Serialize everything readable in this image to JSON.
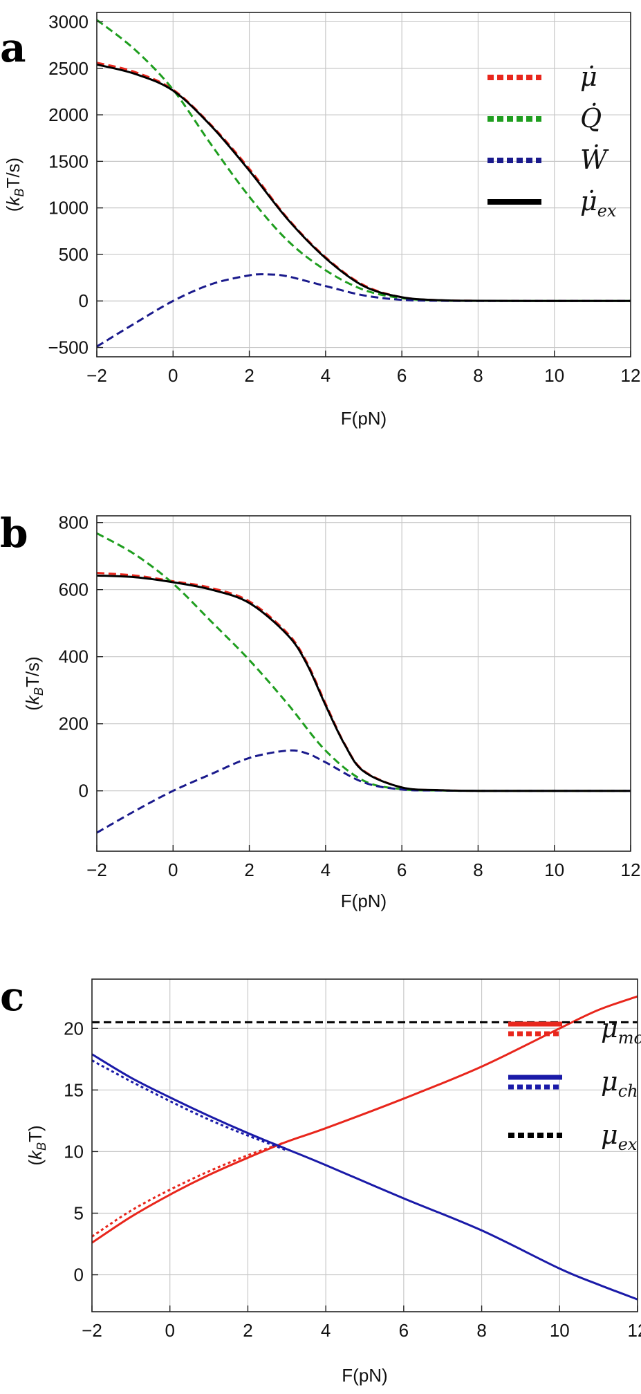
{
  "chart_data": [
    {
      "type": "line",
      "panel_label": "a",
      "xlabel": "F(pN)",
      "ylabel": {
        "prefix": "(",
        "k": "k",
        "sub": "B",
        "suffix": "T/s)"
      },
      "xlim": [
        -2,
        12
      ],
      "ylim": [
        -600,
        3100
      ],
      "xticks": [
        -2,
        0,
        2,
        4,
        6,
        8,
        10,
        12
      ],
      "yticks": [
        -500,
        0,
        500,
        1000,
        1500,
        2000,
        2500,
        3000
      ],
      "grid": true,
      "legend_position": "top-right",
      "series": [
        {
          "name": "μ̇",
          "label": {
            "main": "μ̇",
            "sub": ""
          },
          "color": "#e8261c",
          "style": "dashed",
          "x": [
            -2,
            -1,
            0,
            1,
            2,
            3,
            4,
            5,
            6,
            7,
            8,
            10,
            12
          ],
          "y": [
            2560,
            2460,
            2270,
            1890,
            1420,
            890,
            470,
            170,
            40,
            8,
            2,
            0,
            0
          ]
        },
        {
          "name": "Q̇",
          "label": {
            "main": "Q̇",
            "sub": ""
          },
          "color": "#1f9e1f",
          "style": "dashed",
          "x": [
            -2,
            -1,
            0,
            1,
            2,
            3,
            4,
            5,
            6,
            7,
            8,
            10,
            12
          ],
          "y": [
            3020,
            2700,
            2270,
            1680,
            1120,
            650,
            330,
            120,
            30,
            5,
            1,
            0,
            0
          ]
        },
        {
          "name": "Ẇ",
          "label": {
            "main": "Ẇ",
            "sub": ""
          },
          "color": "#1a1a8c",
          "style": "dashed",
          "x": [
            -2,
            -1,
            0,
            1,
            2,
            2.5,
            3,
            4,
            5,
            6,
            7,
            8,
            10,
            12
          ],
          "y": [
            -490,
            -240,
            0,
            180,
            275,
            285,
            265,
            160,
            60,
            12,
            2,
            0,
            0,
            0
          ]
        },
        {
          "name": "μ̇ex",
          "label": {
            "main": "μ̇",
            "sub": "ex"
          },
          "color": "#000000",
          "style": "solid",
          "x": [
            -2,
            -1,
            0,
            1,
            2,
            3,
            4,
            5,
            6,
            7,
            8,
            10,
            12
          ],
          "y": [
            2540,
            2440,
            2260,
            1880,
            1400,
            880,
            460,
            160,
            40,
            8,
            2,
            0,
            0
          ]
        }
      ]
    },
    {
      "type": "line",
      "panel_label": "b",
      "xlabel": "F(pN)",
      "ylabel": {
        "prefix": "(",
        "k": "k",
        "sub": "B",
        "suffix": "T/s)"
      },
      "xlim": [
        -2,
        12
      ],
      "ylim": [
        -180,
        820
      ],
      "xticks": [
        -2,
        0,
        2,
        4,
        6,
        8,
        10,
        12
      ],
      "yticks": [
        0,
        200,
        400,
        600,
        800
      ],
      "grid": true,
      "legend_position": "none",
      "series": [
        {
          "name": "",
          "color": "#e8261c",
          "style": "dashed",
          "x": [
            -2,
            -1,
            0,
            1,
            2,
            3,
            3.5,
            4,
            4.5,
            5,
            6,
            7,
            8,
            10,
            12
          ],
          "y": [
            650,
            642,
            625,
            605,
            565,
            470,
            385,
            260,
            140,
            60,
            10,
            2,
            0,
            0,
            0
          ]
        },
        {
          "name": "",
          "color": "#1f9e1f",
          "style": "dashed",
          "x": [
            -2,
            -1,
            0,
            1,
            2,
            3,
            4,
            5,
            6,
            7,
            8,
            10,
            12
          ],
          "y": [
            768,
            705,
            618,
            505,
            390,
            260,
            120,
            30,
            5,
            1,
            0,
            0,
            0
          ]
        },
        {
          "name": "",
          "color": "#1a1a8c",
          "style": "dashed",
          "x": [
            -2,
            -1,
            0,
            1,
            2,
            3,
            3.5,
            4,
            5,
            6,
            7,
            8,
            10,
            12
          ],
          "y": [
            -125,
            -60,
            0,
            50,
            98,
            120,
            112,
            85,
            25,
            4,
            1,
            0,
            0,
            0
          ]
        },
        {
          "name": "",
          "color": "#000000",
          "style": "solid",
          "x": [
            -2,
            -1,
            0,
            1,
            2,
            3,
            3.5,
            4,
            4.5,
            5,
            6,
            7,
            8,
            10,
            12
          ],
          "y": [
            642,
            637,
            622,
            600,
            560,
            465,
            380,
            255,
            138,
            58,
            10,
            2,
            0,
            0,
            0
          ]
        }
      ]
    },
    {
      "type": "line",
      "panel_label": "c",
      "xlabel": "F(pN)",
      "ylabel": {
        "prefix": "(",
        "k": "k",
        "sub": "B",
        "suffix": "T)"
      },
      "xlim": [
        -2,
        12
      ],
      "ylim": [
        -3,
        24
      ],
      "xticks": [
        -2,
        0,
        2,
        4,
        6,
        8,
        10,
        12
      ],
      "yticks": [
        0,
        5,
        10,
        15,
        20
      ],
      "grid": true,
      "legend_position": "right",
      "series": [
        {
          "name": "μmc",
          "label": {
            "main": "μ",
            "sub": "mc"
          },
          "color": "#e8261c",
          "style": "solid",
          "pair": true,
          "x": [
            -2,
            -1,
            0,
            1,
            2,
            3,
            4,
            6,
            8,
            10,
            11,
            12
          ],
          "y": [
            2.6,
            4.7,
            6.5,
            8.1,
            9.5,
            10.8,
            11.9,
            14.3,
            16.9,
            20.0,
            21.5,
            22.6
          ]
        },
        {
          "name": "",
          "color": "#e8261c",
          "style": "dotted",
          "x": [
            -2,
            -1,
            0,
            1,
            2,
            3
          ],
          "y": [
            3.1,
            5.2,
            6.9,
            8.4,
            9.7,
            10.8
          ]
        },
        {
          "name": "μch",
          "label": {
            "main": "μ",
            "sub": "ch"
          },
          "color": "#1a1aa8",
          "style": "solid",
          "pair": true,
          "x": [
            -2,
            -1,
            0,
            1,
            2,
            3,
            4,
            6,
            8,
            10,
            11,
            12
          ],
          "y": [
            17.9,
            16.0,
            14.4,
            12.9,
            11.5,
            10.2,
            8.9,
            6.2,
            3.6,
            0.5,
            -0.8,
            -2.0
          ]
        },
        {
          "name": "",
          "color": "#1a1aa8",
          "style": "dotted",
          "x": [
            -2,
            -1,
            0,
            1,
            2,
            3
          ],
          "y": [
            17.4,
            15.7,
            14.1,
            12.6,
            11.3,
            10.1
          ]
        },
        {
          "name": "μex",
          "label": {
            "main": "μ",
            "sub": "ex"
          },
          "color": "#000000",
          "style": "dashed",
          "x": [
            -2,
            12
          ],
          "y": [
            20.5,
            20.5
          ]
        }
      ]
    }
  ]
}
